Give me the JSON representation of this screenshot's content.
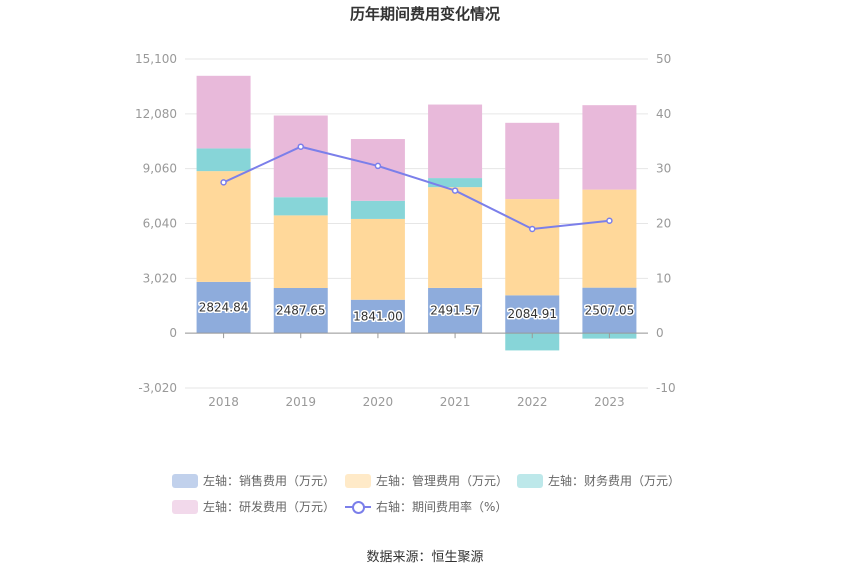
{
  "chart_data": {
    "type": "bar",
    "title": "历年期间费用变化情况",
    "categories": [
      "2018",
      "2019",
      "2020",
      "2021",
      "2022",
      "2023"
    ],
    "series": [
      {
        "name": "左轴：销售费用（万元）",
        "axis": "left",
        "kind": "stacked-bar",
        "color": "#8eacdc",
        "values": [
          2824.84,
          2487.65,
          1841.0,
          2491.57,
          2084.91,
          2507.05
        ]
      },
      {
        "name": "左轴：管理费用（万元）",
        "axis": "left",
        "kind": "stacked-bar",
        "color": "#ffd89a",
        "values": [
          6100,
          4000,
          4450,
          5550,
          5300,
          5400
        ]
      },
      {
        "name": "左轴：财务费用（万元）",
        "axis": "left",
        "kind": "stacked-bar",
        "color": "#87d5d8",
        "values": [
          1250,
          1000,
          1000,
          500,
          -950,
          -300
        ]
      },
      {
        "name": "左轴：研发费用（万元）",
        "axis": "left",
        "kind": "stacked-bar",
        "color": "#e8b9da",
        "values": [
          4000,
          4500,
          3400,
          4050,
          4200,
          4650
        ]
      },
      {
        "name": "右轴：期间费用率（%）",
        "axis": "right",
        "kind": "line",
        "color": "#7b7fea",
        "values": [
          27.5,
          34.0,
          30.5,
          26.0,
          19.0,
          20.5
        ]
      }
    ],
    "left_axis": {
      "ticks": [
        "15,100",
        "12,080",
        "9,060",
        "6,040",
        "3,020",
        "0",
        "-3,020"
      ],
      "ylim": [
        -3020,
        15100
      ]
    },
    "right_axis": {
      "ticks": [
        "50",
        "40",
        "30",
        "20",
        "10",
        "0",
        "-10"
      ],
      "ylim": [
        -10,
        50
      ]
    },
    "bar_labels": [
      "2824.84",
      "2487.65",
      "1841.00",
      "2491.57",
      "2084.91",
      "2507.05"
    ],
    "grid": true,
    "legend_position": "bottom"
  },
  "source": "数据来源：恒生聚源"
}
